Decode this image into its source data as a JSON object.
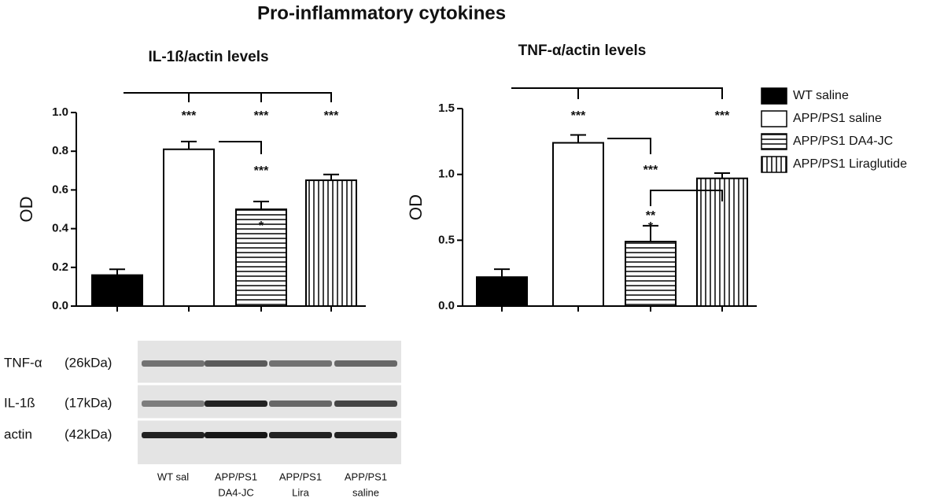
{
  "title": "Pro-inflammatory cytokines",
  "legend": [
    {
      "name": "WT saline",
      "fill": "solid"
    },
    {
      "name": "APP/PS1 saline",
      "fill": "open"
    },
    {
      "name": "APP/PS1 DA4-JC",
      "fill": "horizontal"
    },
    {
      "name": "APP/PS1 Liraglutide",
      "fill": "vertical"
    }
  ],
  "chart_data": [
    {
      "type": "bar",
      "title": "IL-1ß/actin levels",
      "ylabel": "OD",
      "categories": [
        null,
        null,
        null,
        null
      ],
      "values": [
        0.16,
        0.81,
        0.5,
        0.65
      ],
      "errors": [
        0.03,
        0.04,
        0.04,
        0.03
      ],
      "ylim": [
        0,
        1
      ],
      "yticks": [
        {
          "value": 0,
          "label": "0.0"
        },
        0.2,
        0.4,
        0.6,
        0.8,
        {
          "value": 1,
          "label": "1.0"
        }
      ],
      "annotations": [
        "***",
        "***",
        "***",
        "***",
        "*"
      ]
    },
    {
      "type": "bar",
      "title": "TNF-α/actin levels",
      "ylabel": "OD",
      "categories": [
        null,
        null,
        null,
        null
      ],
      "values": [
        0.22,
        1.24,
        0.49,
        0.97
      ],
      "errors": [
        0.06,
        0.06,
        0.12,
        0.04
      ],
      "ylim": [
        0,
        1.5
      ],
      "yticks": [
        {
          "value": 0,
          "label": "0.0"
        },
        0.5,
        {
          "value": 1,
          "label": "1.0"
        },
        1.5
      ],
      "annotations": [
        "***",
        "***",
        "***",
        "**",
        "*"
      ]
    }
  ],
  "blot": {
    "rows": [
      {
        "protein": "TNF-α",
        "size": "(26kDa)"
      },
      {
        "protein": "IL-1ß",
        "size": "(17kDa)"
      },
      {
        "protein": "actin",
        "size": "(42kDa)"
      }
    ],
    "lanes": [
      [
        "WT sal"
      ],
      [
        "APP/PS1",
        "DA4-JC"
      ],
      [
        "APP/PS1",
        "Lira"
      ],
      [
        "APP/PS1",
        "saline"
      ]
    ]
  }
}
